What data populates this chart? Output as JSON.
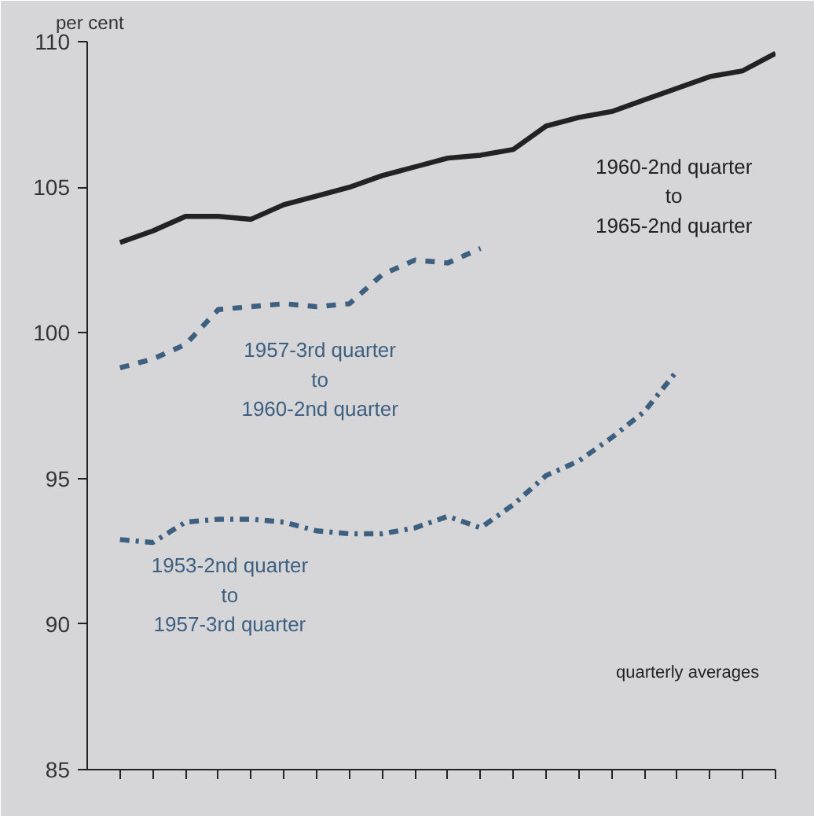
{
  "chart_data": {
    "type": "line",
    "ylabel": "per cent",
    "categories": [
      null,
      null,
      null,
      null,
      null,
      null,
      null,
      null,
      null,
      null,
      null,
      null,
      null,
      null,
      null,
      null,
      null,
      null,
      null,
      null,
      null
    ],
    "ylim": [
      85,
      110
    ],
    "yticks": [
      85,
      90,
      95,
      100,
      105,
      110
    ],
    "grid": false,
    "marker": "none",
    "series": [
      {
        "name": "1960-2nd quarter\nto\n1965-2nd quarter",
        "color": "#222222",
        "line_style": "solid",
        "values": [
          103.1,
          103.5,
          104.0,
          104.0,
          103.9,
          104.4,
          104.7,
          105.0,
          105.4,
          105.7,
          106.0,
          106.1,
          106.3,
          107.1,
          107.4,
          107.6,
          108.0,
          108.4,
          108.8,
          109.0,
          109.6
        ]
      },
      {
        "name": "1957-3rd quarter\nto\n1960-2nd quarter",
        "color": "#3d5f80",
        "line_style": "dashed",
        "values": [
          98.8,
          99.1,
          99.6,
          100.8,
          100.9,
          101.0,
          100.9,
          101.0,
          102.0,
          102.5,
          102.4,
          102.9,
          null,
          null,
          null,
          null,
          null,
          null,
          null,
          null,
          null
        ]
      },
      {
        "name": "1953-2nd quarter\nto\n1957-3rd quarter",
        "color": "#3d5f80",
        "line_style": "dashdot",
        "values": [
          92.9,
          92.8,
          93.5,
          93.6,
          93.6,
          93.5,
          93.2,
          93.1,
          93.1,
          93.3,
          93.7,
          93.3,
          94.1,
          95.1,
          95.6,
          96.4,
          97.3,
          98.7,
          null,
          null,
          null
        ]
      }
    ],
    "annotations": [
      "quarterly averages"
    ]
  }
}
